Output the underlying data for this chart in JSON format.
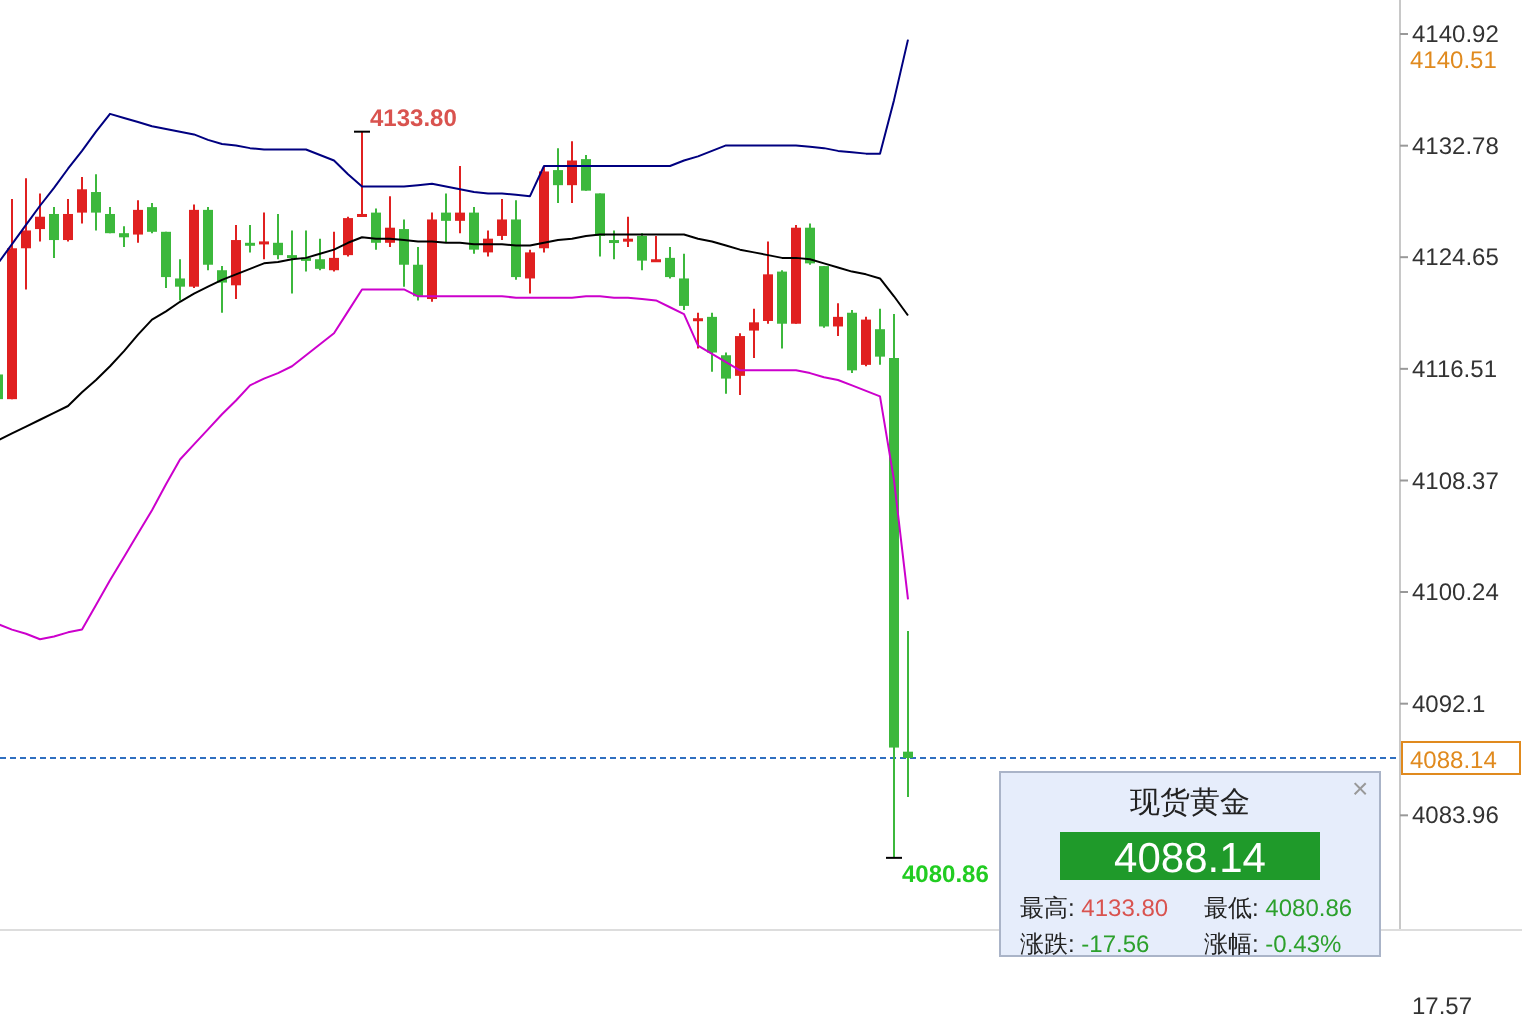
{
  "chart_data": [
    {
      "type": "candlestick",
      "categories": [
        null,
        null,
        null,
        null,
        null,
        null,
        null,
        null,
        null,
        null,
        null,
        null,
        null,
        null,
        null,
        null,
        null,
        null,
        null,
        null,
        null,
        null,
        null,
        null,
        null,
        null,
        null,
        null,
        null,
        null,
        null,
        null,
        null,
        null,
        null,
        null,
        null,
        null,
        null,
        null,
        null,
        null,
        null,
        null,
        null,
        null,
        null,
        null,
        null,
        null,
        null,
        null,
        null,
        null,
        null,
        null,
        null,
        null,
        null,
        null,
        null,
        null,
        null,
        null,
        null,
        null
      ],
      "ohlc": [
        [
          4116.1,
          4116.1,
          4114.3,
          4114.3
        ],
        [
          4114.3,
          4128.9,
          4114.3,
          4125.3
        ],
        [
          4125.3,
          4130.4,
          4122.3,
          4126.6
        ],
        [
          4126.7,
          4129.3,
          4125.8,
          4127.6
        ],
        [
          4127.8,
          4128.3,
          4124.6,
          4125.9
        ],
        [
          4125.9,
          4128.9,
          4125.8,
          4127.8
        ],
        [
          4127.9,
          4130.5,
          4127.1,
          4129.6
        ],
        [
          4129.4,
          4130.7,
          4126.6,
          4127.9
        ],
        [
          4127.8,
          4128.3,
          4126.4,
          4126.4
        ],
        [
          4126.4,
          4126.9,
          4125.4,
          4126.1
        ],
        [
          4126.3,
          4128.8,
          4125.7,
          4128.1
        ],
        [
          4128.3,
          4128.6,
          4126.4,
          4126.5
        ],
        [
          4126.5,
          4126.5,
          4122.4,
          4123.2
        ],
        [
          4123.1,
          4124.5,
          4121.5,
          4122.5
        ],
        [
          4122.5,
          4128.5,
          4122.4,
          4128.1
        ],
        [
          4128.1,
          4128.3,
          4123.7,
          4124.1
        ],
        [
          4123.7,
          4124.0,
          4120.6,
          4122.8
        ],
        [
          4122.6,
          4127.0,
          4121.6,
          4125.9
        ],
        [
          4125.7,
          4127.0,
          4125.0,
          4125.6
        ],
        [
          4125.6,
          4127.9,
          4124.5,
          4125.8
        ],
        [
          4125.7,
          4127.8,
          4124.5,
          4124.8
        ],
        [
          4124.8,
          4126.6,
          4122.0,
          4124.7
        ],
        [
          4124.6,
          4126.6,
          4123.6,
          4124.5
        ],
        [
          4124.5,
          4126.0,
          4123.7,
          4123.8
        ],
        [
          4123.7,
          4126.5,
          4123.6,
          4124.6
        ],
        [
          4124.8,
          4127.6,
          4124.7,
          4127.5
        ],
        [
          4127.6,
          4133.8,
          4127.6,
          4127.8
        ],
        [
          4127.9,
          4128.2,
          4125.2,
          4125.7
        ],
        [
          4125.7,
          4129.1,
          4125.4,
          4126.8
        ],
        [
          4126.7,
          4127.4,
          4122.5,
          4124.1
        ],
        [
          4124.1,
          4125.4,
          4121.5,
          4121.8
        ],
        [
          4121.6,
          4127.9,
          4121.4,
          4127.4
        ],
        [
          4127.9,
          4129.3,
          4125.7,
          4127.3
        ],
        [
          4127.3,
          4131.3,
          4126.4,
          4127.9
        ],
        [
          4127.9,
          4128.3,
          4124.9,
          4125.2
        ],
        [
          4125.0,
          4126.6,
          4124.7,
          4126.0
        ],
        [
          4126.2,
          4128.9,
          4125.9,
          4127.4
        ],
        [
          4127.4,
          4128.8,
          4123.0,
          4123.2
        ],
        [
          4123.1,
          4125.2,
          4122.0,
          4125.0
        ],
        [
          4125.3,
          4131.3,
          4125.0,
          4130.9
        ],
        [
          4131.0,
          4132.6,
          4128.6,
          4129.9
        ],
        [
          4129.9,
          4133.1,
          4128.6,
          4131.7
        ],
        [
          4131.8,
          4132.1,
          4129.5,
          4129.5
        ],
        [
          4129.3,
          4129.3,
          4124.7,
          4126.2
        ],
        [
          4125.9,
          4126.6,
          4124.5,
          4125.9
        ],
        [
          4125.9,
          4127.6,
          4125.4,
          4126.0
        ],
        [
          4126.2,
          4126.4,
          4123.7,
          4124.4
        ],
        [
          4124.5,
          4126.2,
          4124.4,
          4124.5
        ],
        [
          4124.6,
          4125.4,
          4123.1,
          4123.2
        ],
        [
          4123.1,
          4124.9,
          4120.8,
          4121.1
        ],
        [
          4120.0,
          4120.6,
          4118.0,
          4120.2
        ],
        [
          4120.3,
          4120.6,
          4116.3,
          4117.7
        ],
        [
          4117.5,
          4117.7,
          4114.7,
          4115.8
        ],
        [
          4116.0,
          4119.1,
          4114.6,
          4118.9
        ],
        [
          4119.3,
          4120.9,
          4117.3,
          4119.9
        ],
        [
          4120.0,
          4125.8,
          4119.8,
          4123.4
        ],
        [
          4123.6,
          4123.7,
          4118.0,
          4119.8
        ],
        [
          4119.8,
          4127.0,
          4119.8,
          4126.8
        ],
        [
          4126.8,
          4127.1,
          4124.1,
          4124.2
        ],
        [
          4124.0,
          4124.0,
          4119.5,
          4119.6
        ],
        [
          4119.6,
          4121.3,
          4118.9,
          4120.3
        ],
        [
          4120.6,
          4120.8,
          4116.2,
          4116.4
        ],
        [
          4116.8,
          4120.3,
          4116.7,
          4120.1
        ],
        [
          4119.4,
          4120.9,
          4116.8,
          4117.4
        ],
        [
          4117.3,
          4120.5,
          4080.86,
          4088.9
        ],
        [
          4088.6,
          4097.4,
          4085.3,
          4088.14
        ]
      ],
      "colors": [
        "#3cb83c",
        "#e02020",
        "#e02020",
        "#e02020",
        "#3cb83c",
        "#e02020",
        "#e02020",
        "#3cb83c",
        "#3cb83c",
        "#3cb83c",
        "#e02020",
        "#3cb83c",
        "#3cb83c",
        "#3cb83c",
        "#e02020",
        "#3cb83c",
        "#3cb83c",
        "#e02020",
        "#3cb83c",
        "#e02020",
        "#3cb83c",
        "#3cb83c",
        "#3cb83c",
        "#3cb83c",
        "#e02020",
        "#e02020",
        "#e02020",
        "#3cb83c",
        "#e02020",
        "#3cb83c",
        "#3cb83c",
        "#e02020",
        "#3cb83c",
        "#e02020",
        "#3cb83c",
        "#e02020",
        "#e02020",
        "#3cb83c",
        "#e02020",
        "#e02020",
        "#3cb83c",
        "#e02020",
        "#3cb83c",
        "#3cb83c",
        "#3cb83c",
        "#e02020",
        "#3cb83c",
        "#e02020",
        "#3cb83c",
        "#3cb83c",
        "#e02020",
        "#3cb83c",
        "#3cb83c",
        "#e02020",
        "#e02020",
        "#e02020",
        "#3cb83c",
        "#e02020",
        "#3cb83c",
        "#3cb83c",
        "#e02020",
        "#3cb83c",
        "#e02020",
        "#3cb83c",
        "#3cb83c",
        "#3cb83c"
      ],
      "series": [
        {
          "type": "line",
          "color": "#000080",
          "values": [
            4124.2,
            4125.6,
            4127.0,
            4128.4,
            4129.7,
            4131.1,
            4132.4,
            4133.8,
            4135.1,
            4134.8,
            4134.5,
            4134.2,
            4134.0,
            4133.8,
            4133.6,
            4133.2,
            4132.9,
            4132.8,
            4132.6,
            4132.5,
            4132.5,
            4132.5,
            4132.5,
            4132.1,
            4131.7,
            4130.7,
            4129.8,
            4129.8,
            4129.8,
            4129.8,
            4129.9,
            4130.0,
            4129.8,
            4129.6,
            4129.4,
            4129.3,
            4129.3,
            4129.2,
            4129.1,
            4131.3,
            4131.3,
            4131.3,
            4131.3,
            4131.3,
            4131.3,
            4131.3,
            4131.3,
            4131.3,
            4131.3,
            4131.7,
            4132.0,
            4132.4,
            4132.8,
            4132.8,
            4132.8,
            4132.8,
            4132.8,
            4132.8,
            4132.7,
            4132.6,
            4132.4,
            4132.3,
            4132.2,
            4132.2,
            4136.1,
            4140.51
          ]
        },
        {
          "type": "line",
          "color": "#000000",
          "values": [
            4111.3,
            4111.8,
            4112.3,
            4112.8,
            4113.3,
            4113.8,
            4114.8,
            4115.7,
            4116.7,
            4117.8,
            4119.0,
            4120.1,
            4120.7,
            4121.4,
            4122.0,
            4122.5,
            4123.0,
            4123.4,
            4123.8,
            4124.2,
            4124.3,
            4124.5,
            4124.6,
            4124.9,
            4125.2,
            4125.7,
            4126.1,
            4126.0,
            4126.0,
            4125.9,
            4125.8,
            4125.8,
            4125.7,
            4125.7,
            4125.6,
            4125.6,
            4125.6,
            4125.5,
            4125.5,
            4125.7,
            4125.9,
            4126.0,
            4126.2,
            4126.3,
            4126.3,
            4126.3,
            4126.3,
            4126.3,
            4126.3,
            4126.3,
            4126.0,
            4125.8,
            4125.5,
            4125.2,
            4125.0,
            4124.8,
            4124.6,
            4124.6,
            4124.5,
            4124.2,
            4123.9,
            4123.6,
            4123.4,
            4123.1,
            4121.8,
            4120.4
          ]
        },
        {
          "type": "line",
          "color": "#cc00cc",
          "values": [
            4097.9,
            4097.5,
            4097.2,
            4096.8,
            4097.0,
            4097.3,
            4097.5,
            4099.3,
            4101.1,
            4102.8,
            4104.5,
            4106.2,
            4108.1,
            4109.9,
            4111.0,
            4112.1,
            4113.2,
            4114.2,
            4115.3,
            4115.8,
            4116.2,
            4116.7,
            4117.5,
            4118.3,
            4119.1,
            4120.7,
            4122.3,
            4122.3,
            4122.3,
            4122.3,
            4121.8,
            4121.8,
            4121.8,
            4121.8,
            4121.8,
            4121.8,
            4121.8,
            4121.7,
            4121.7,
            4121.7,
            4121.7,
            4121.7,
            4121.8,
            4121.8,
            4121.7,
            4121.7,
            4121.6,
            4121.5,
            4121.0,
            4120.5,
            4118.2,
            4117.6,
            4117.0,
            4116.4,
            4116.4,
            4116.4,
            4116.4,
            4116.4,
            4116.2,
            4115.9,
            4115.7,
            4115.3,
            4114.9,
            4114.5,
            4108.4,
            4099.7
          ]
        }
      ],
      "ylim": [
        4075.6,
        4143.4
      ],
      "yticks": [
        4140.92,
        4132.78,
        4124.65,
        4116.51,
        4108.37,
        4100.24,
        4092.1,
        4083.96
      ],
      "tick_labels": "y",
      "ref_lines": [
        {
          "axis": "y",
          "value": 4088.14,
          "label": "4088.14",
          "color": "#2f6fc0",
          "line_style": "dashed"
        }
      ],
      "annotations": [
        "4133.80",
        "4080.86",
        "4140.51",
        "17.57"
      ]
    },
    {
      "type": "other",
      "title": "现货黄金",
      "annotations": [
        "4088.14",
        "最高: 4133.80",
        "最低: 4080.86",
        "涨跌: -17.56",
        "涨幅: -0.43%",
        "×"
      ],
      "colors": [
        "#1f9a2a",
        "#d9534f",
        "#2ca02c",
        "#2ca02c",
        "#2ca02c",
        "#999999"
      ]
    }
  ]
}
